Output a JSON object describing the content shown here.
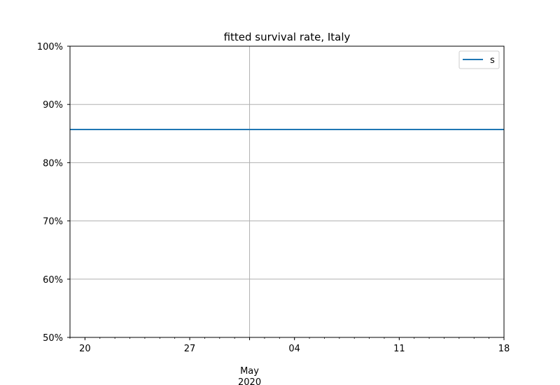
{
  "chart_data": {
    "type": "line",
    "title": "fitted survival rate, Italy",
    "xlabel": "",
    "ylabel": "",
    "xlim": [
      "2020-04-19",
      "2020-05-18"
    ],
    "ylim": [
      0.5,
      1.0
    ],
    "y_tick_values": [
      0.5,
      0.6,
      0.7,
      0.8,
      0.9,
      1.0
    ],
    "y_tick_labels": [
      "50%",
      "60%",
      "70%",
      "80%",
      "90%",
      "100%"
    ],
    "x_major_ticks": [
      {
        "date": "2020-04-20",
        "label": "20"
      },
      {
        "date": "2020-04-27",
        "label": "27"
      },
      {
        "date": "2020-05-04",
        "label": "04"
      },
      {
        "date": "2020-05-11",
        "label": "11"
      },
      {
        "date": "2020-05-18",
        "label": "18"
      }
    ],
    "x_month_label": {
      "date": "2020-05-01",
      "month": "May",
      "year": "2020"
    },
    "grid": true,
    "legend_position": "top-right",
    "series": [
      {
        "name": "s",
        "color": "#1f77b4",
        "x": [
          "2020-04-19",
          "2020-05-18"
        ],
        "y": [
          0.857,
          0.857
        ]
      }
    ]
  }
}
